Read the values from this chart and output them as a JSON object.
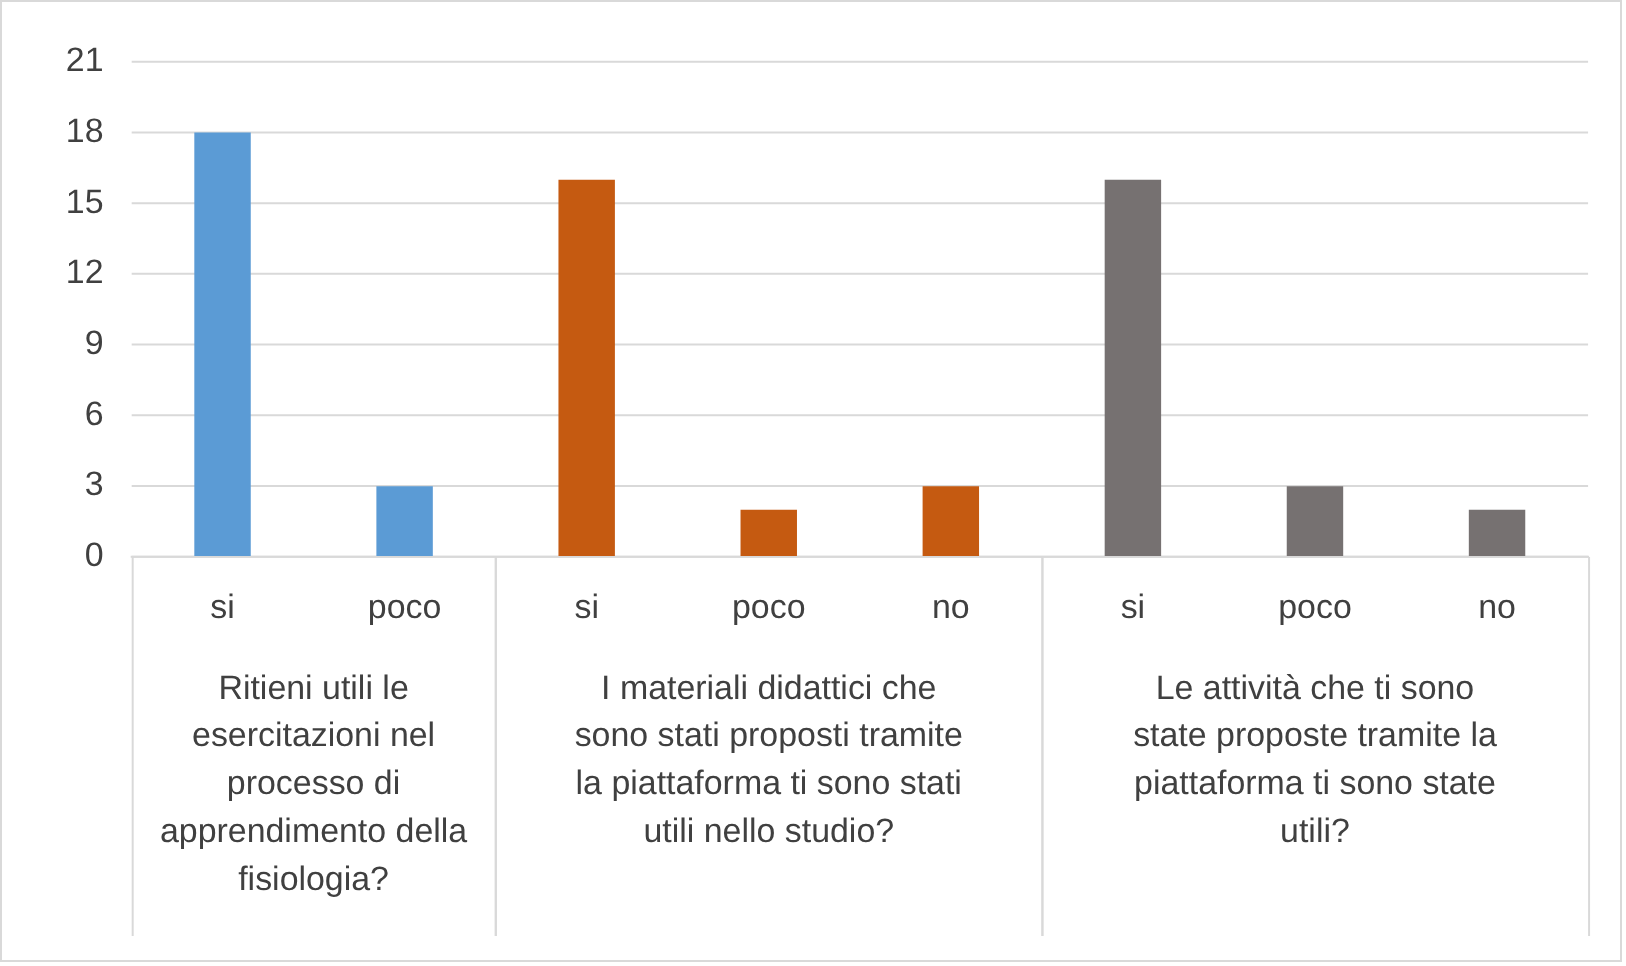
{
  "chart_data": {
    "type": "bar",
    "categories": [
      "si",
      "poco",
      "si",
      "poco",
      "no",
      "si",
      "poco",
      "no"
    ],
    "values": [
      18,
      3,
      16,
      2,
      3,
      16,
      3,
      2
    ],
    "colors": [
      "#5b9bd5",
      "#5b9bd5",
      "#c55a11",
      "#c55a11",
      "#c55a11",
      "#767171",
      "#767171",
      "#767171"
    ],
    "annotations": [
      "Ritieni utili le esercitazioni nel processo di apprendimento della fisiologia?",
      "I materiali didattici che sono stati proposti tramite la piattaforma ti sono stati utili nello studio?",
      "Le attività che ti sono state proposte tramite la piattaforma ti sono state utili?"
    ],
    "ylim": [
      0,
      21
    ],
    "yticks": [
      0,
      3,
      6,
      9,
      12,
      15,
      18,
      21
    ],
    "grid": "y",
    "legend": false
  }
}
